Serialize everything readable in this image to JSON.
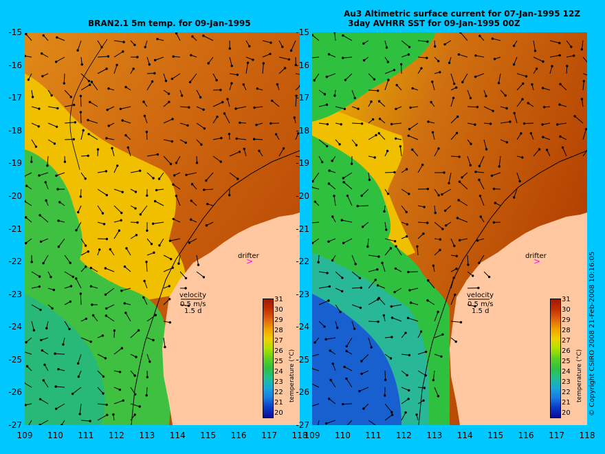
{
  "titles": {
    "left": "BRAN2.1 5m temp. for 09-Jan-1995",
    "right_line1": "Au3 Altimetric surface current for 07-Jan-1995 12Z",
    "right_line2": "3day AVHRR SST for 09-Jan-1995 00Z"
  },
  "axes": {
    "lat_ticks": [
      "-15",
      "-16",
      "-17",
      "-18",
      "-19",
      "-20",
      "-21",
      "-22",
      "-23",
      "-24",
      "-25",
      "-26",
      "-27"
    ],
    "lon_ticks": [
      "109",
      "110",
      "111",
      "112",
      "113",
      "114",
      "115",
      "116",
      "117",
      "118"
    ],
    "lat_range": [
      -27,
      -15
    ],
    "lon_range": [
      109,
      118
    ]
  },
  "annotations": {
    "drifter": "drifter",
    "velocity": "velocity",
    "velocity_scale": "0.5 m/s",
    "velocity_duration": "1.5 d"
  },
  "colorbar": {
    "ticks": [
      "31",
      "30",
      "29",
      "28",
      "27",
      "26",
      "25",
      "24",
      "23",
      "22",
      "21",
      "20"
    ],
    "label": "temperature (°C)",
    "range": [
      20,
      31
    ]
  },
  "copyright": "© Copyright CSIRO 2008   21-Feb-2008 10:16:05",
  "colors": {
    "background": "#00c8ff",
    "land": "#ffc8a0",
    "drifter_marker": "#ff00ff",
    "warm": "#b03a00",
    "mid_orange": "#d07010",
    "yellow": "#f0c000",
    "green": "#30c040",
    "blue": "#1860d0"
  },
  "map": {
    "drifter_position": {
      "lon": 116.6,
      "lat": -22.0
    }
  }
}
